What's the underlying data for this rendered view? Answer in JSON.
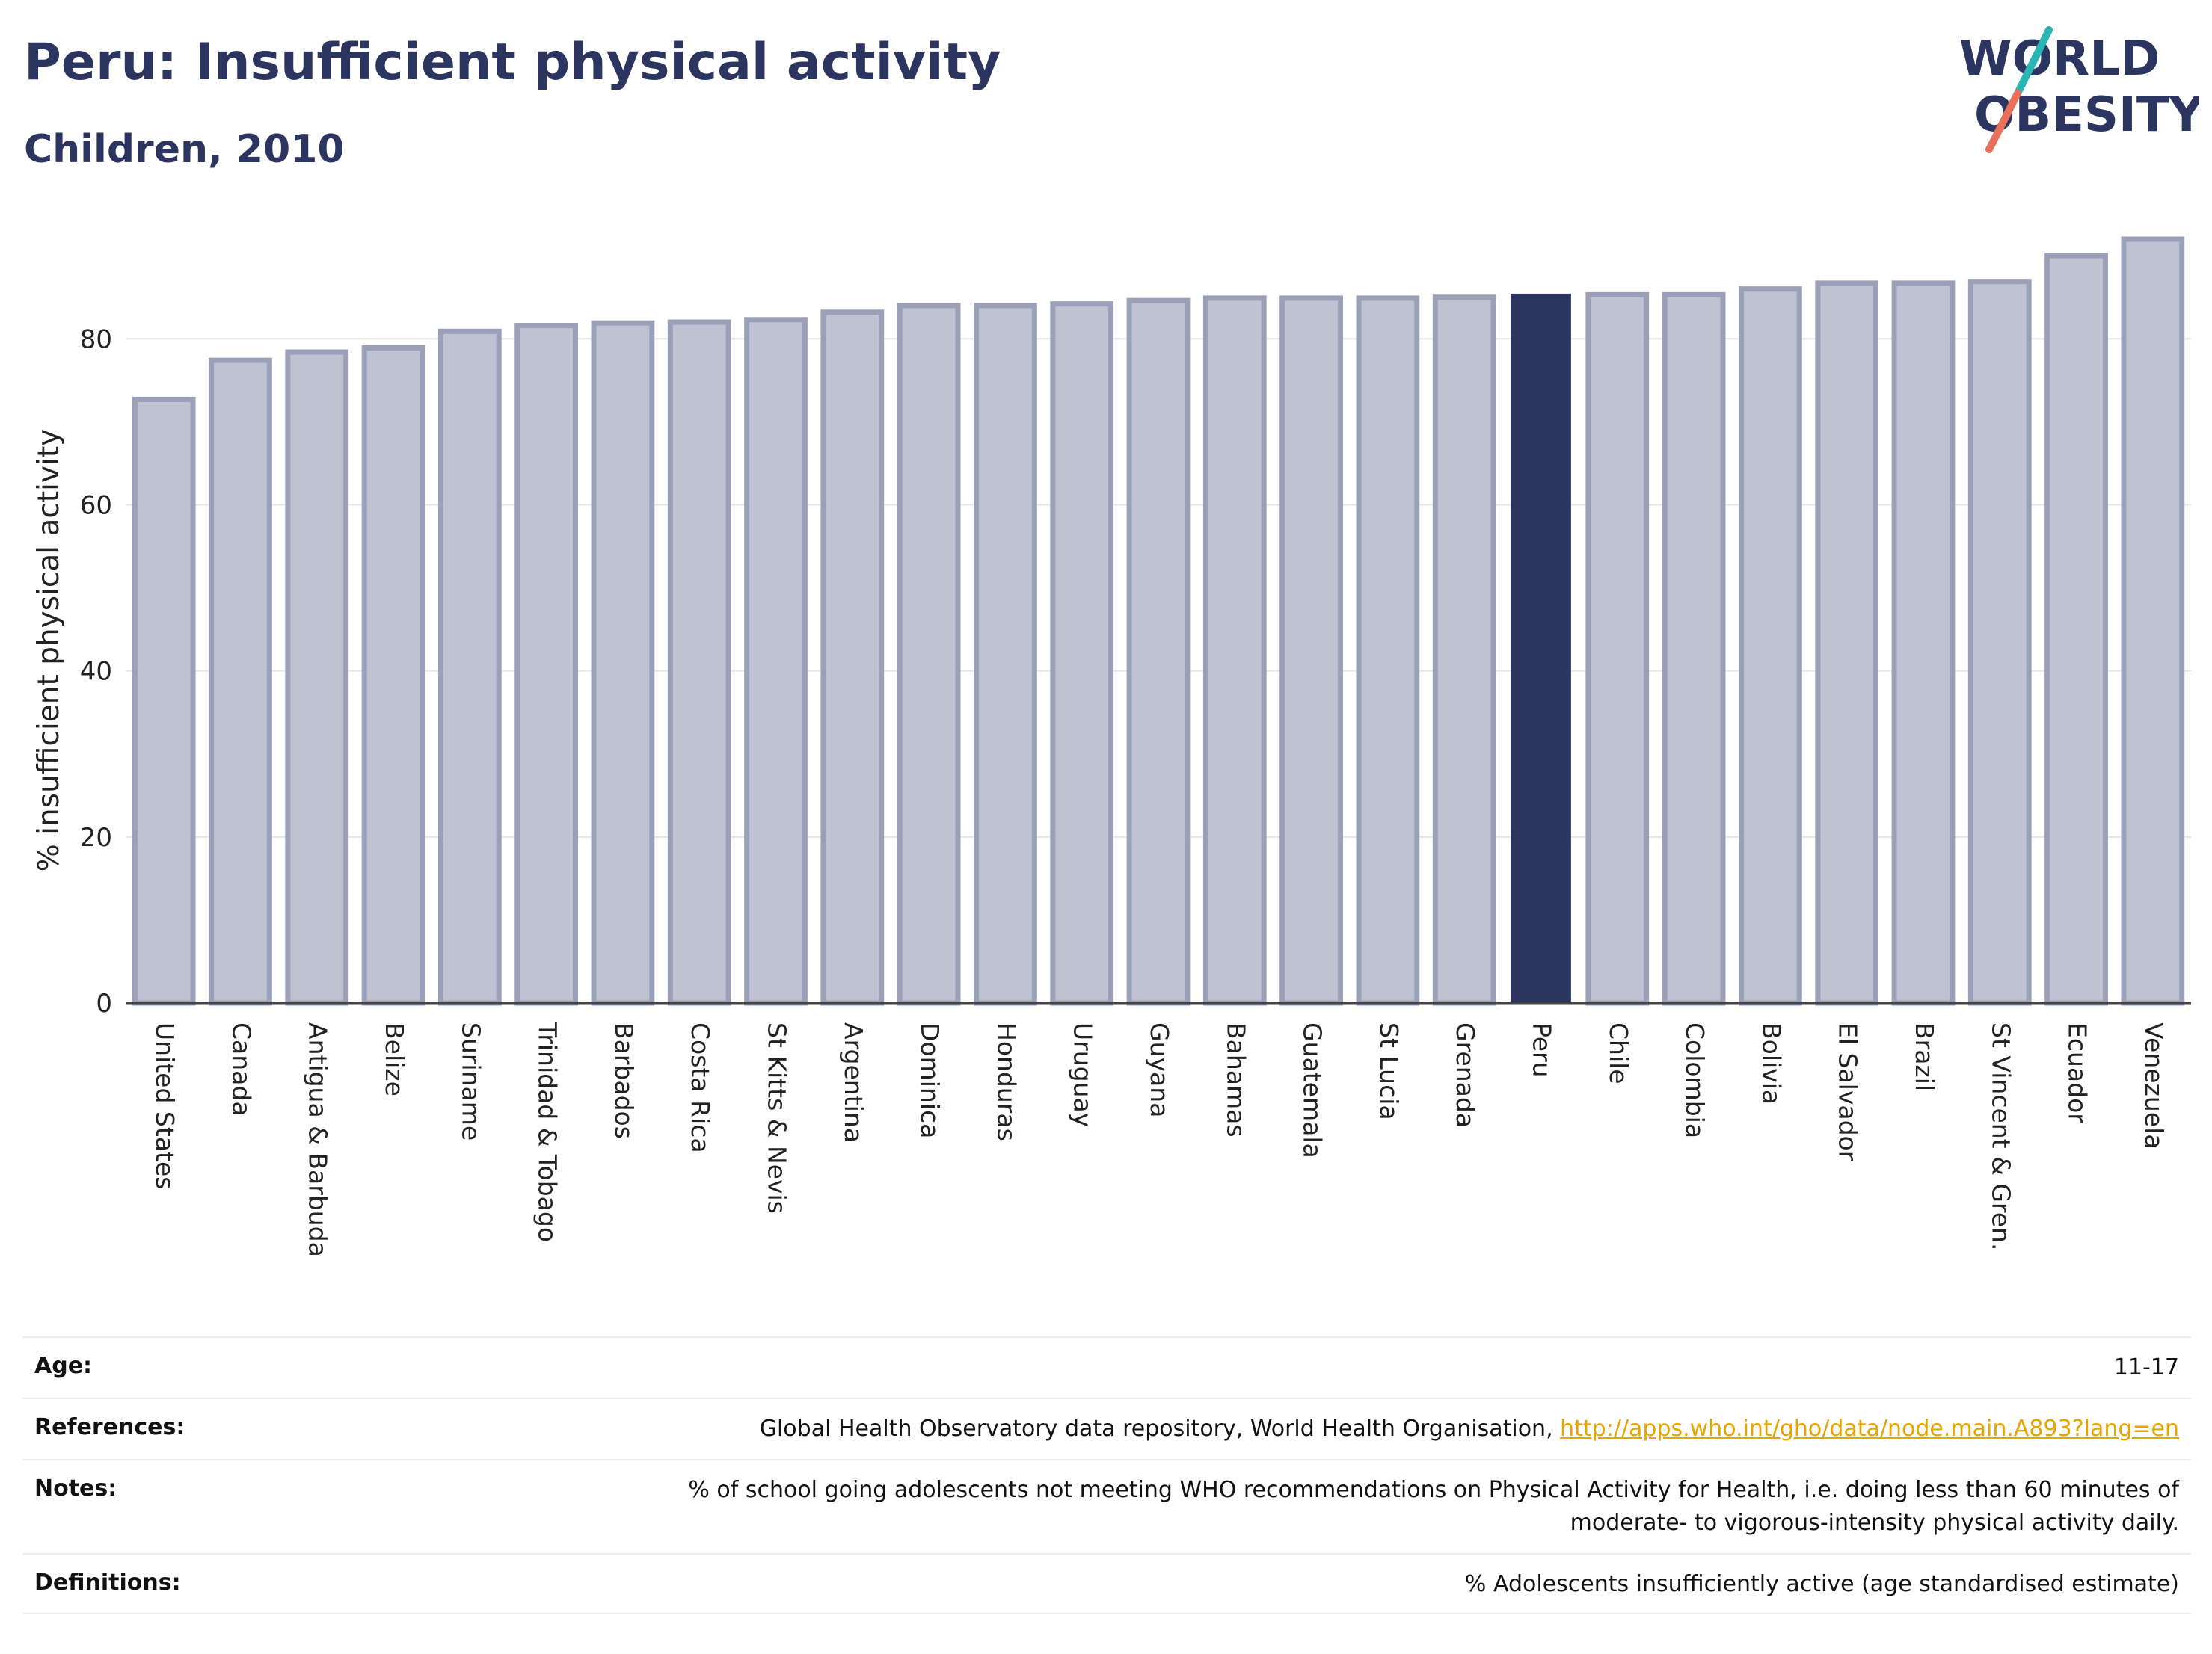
{
  "header": {
    "title": "Peru: Insufficient physical activity",
    "subtitle": "Children, 2010"
  },
  "logo": {
    "line1": "WORLD",
    "line2": "OBESITY"
  },
  "colors": {
    "highlight": "#2b3560",
    "bar": "#bfc2d0",
    "bar_border": "#9aa0b8",
    "link": "#e5a400"
  },
  "chart_data": {
    "type": "bar",
    "ylabel": "% insufficient physical activity",
    "ylim": [
      0,
      92
    ],
    "yticks": [
      0,
      20,
      40,
      60,
      80
    ],
    "grid": true,
    "highlight": "Peru",
    "categories": [
      "United States",
      "Canada",
      "Antigua & Barbuda",
      "Belize",
      "Suriname",
      "Trinidad & Tobago",
      "Barbados",
      "Costa Rica",
      "St Kitts & Nevis",
      "Argentina",
      "Dominica",
      "Honduras",
      "Uruguay",
      "Guyana",
      "Bahamas",
      "Guatemala",
      "St Lucia",
      "Grenada",
      "Peru",
      "Chile",
      "Colombia",
      "Bolivia",
      "El Salvador",
      "Brazil",
      "St Vincent & Gren.",
      "Ecuador",
      "Venezuela"
    ],
    "values": [
      72.7,
      77.4,
      78.4,
      78.9,
      80.9,
      81.6,
      81.9,
      82.0,
      82.3,
      83.2,
      84.0,
      84.0,
      84.2,
      84.6,
      84.9,
      84.9,
      84.9,
      85.0,
      85.3,
      85.3,
      85.3,
      86.0,
      86.7,
      86.7,
      86.9,
      90.0,
      92.0
    ]
  },
  "info": {
    "age": {
      "label": "Age:",
      "value": "11-17"
    },
    "references": {
      "label": "References:",
      "text": "Global Health Observatory data repository, World Health Organisation, ",
      "link": "http://apps.who.int/gho/data/node.main.A893?lang=en"
    },
    "notes": {
      "label": "Notes:",
      "line1": "% of school going adolescents not meeting WHO recommendations on Physical Activity for Health, i.e. doing less than 60 minutes of",
      "line2": "moderate- to vigorous-intensity physical activity daily."
    },
    "definitions": {
      "label": "Definitions:",
      "value": "% Adolescents insufficiently active (age standardised estimate)"
    }
  }
}
